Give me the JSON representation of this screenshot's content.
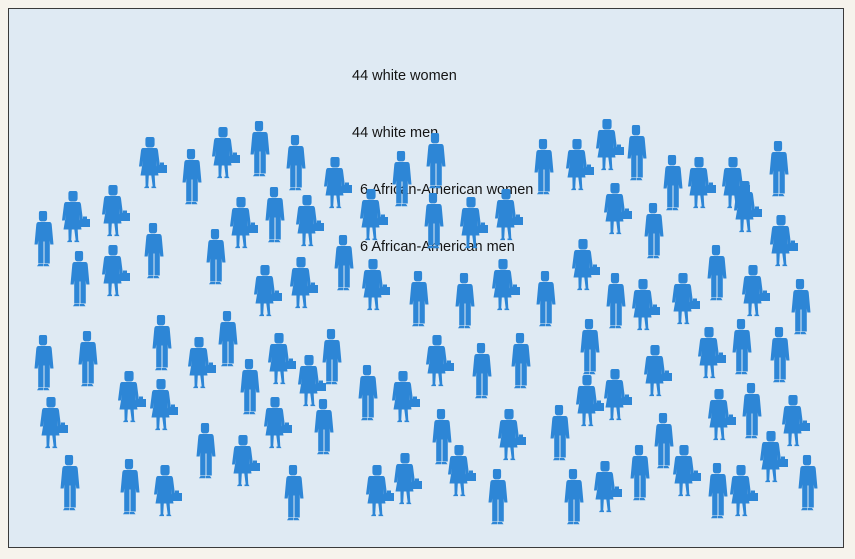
{
  "legend": {
    "items": [
      "44 white women",
      "44 white men",
      "  6 African-American women",
      "  6 African-American men"
    ]
  },
  "crowd": {
    "counts": {
      "white_women": 44,
      "white_men": 44,
      "african_american_women": 6,
      "african_american_men": 6
    },
    "figure_color": "#2d86d6",
    "background_color": "#dfeaf3",
    "icon": "person-silhouette-icon"
  }
}
